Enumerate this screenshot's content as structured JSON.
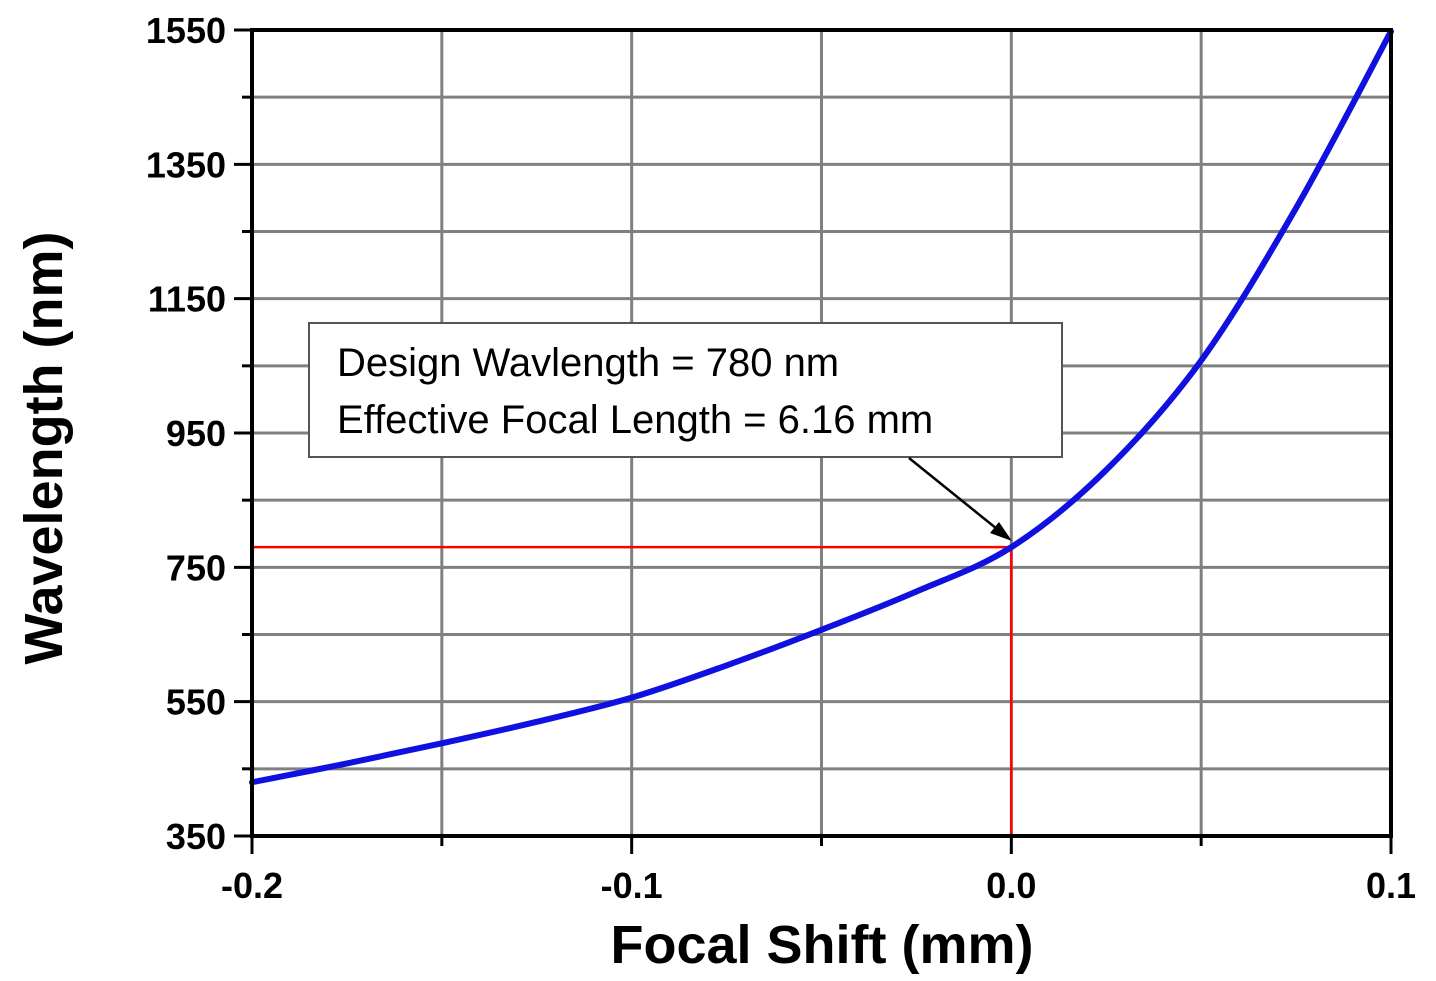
{
  "chart_data": {
    "type": "line",
    "title": "",
    "xlabel": "Focal Shift (mm)",
    "ylabel": "Wavelength (nm)",
    "xlim": [
      -0.2,
      0.1
    ],
    "ylim": [
      350,
      1550
    ],
    "xticks": [
      "-0.2",
      "-0.1",
      "0.0",
      "0.1"
    ],
    "yticks": [
      "350",
      "550",
      "750",
      "950",
      "1150",
      "1350",
      "1550"
    ],
    "grid": true,
    "series": [
      {
        "color": "#1010e0",
        "x": [
          -0.2,
          -0.175,
          -0.15,
          -0.125,
          -0.1,
          -0.075,
          -0.05,
          -0.025,
          0.0,
          0.025,
          0.05,
          0.075,
          0.1
        ],
        "y": [
          430,
          458,
          488,
          520,
          556,
          604,
          657,
          714,
          780,
          895,
          1058,
          1285,
          1548
        ]
      }
    ],
    "reference_point": {
      "x": 0.0,
      "y": 780,
      "color": "#ff0000"
    },
    "annotation": {
      "lines": [
        "Design Wavlength = 780 nm",
        "Effective Focal Length = 6.16 mm"
      ]
    }
  }
}
